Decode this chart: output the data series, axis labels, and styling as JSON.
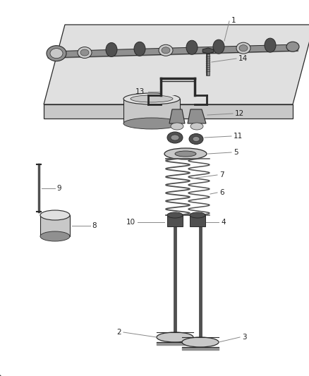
{
  "bg_color": "#ffffff",
  "line_color": "#2a2a2a",
  "gray_dark": "#505050",
  "gray_mid": "#909090",
  "gray_light": "#c8c8c8",
  "gray_lighter": "#e0e0e0",
  "label_color": "#222222",
  "leader_color": "#888888",
  "font_size": 7.5
}
